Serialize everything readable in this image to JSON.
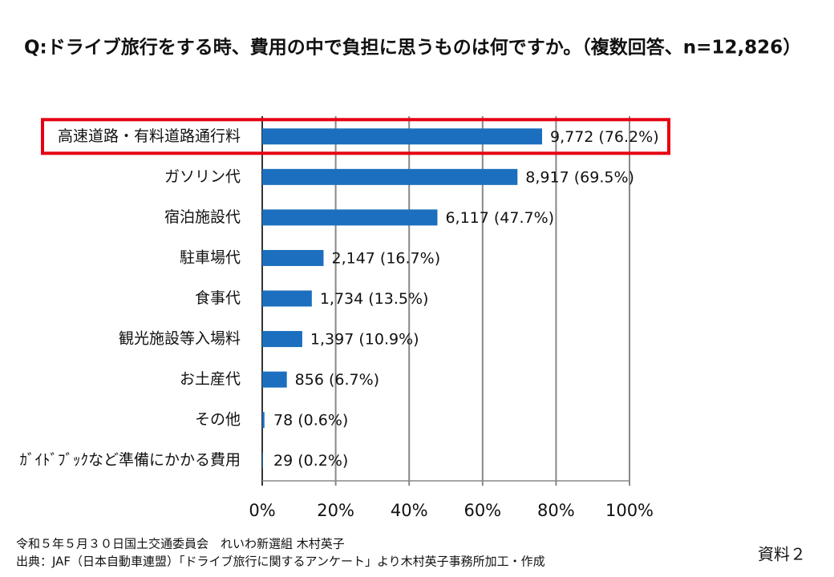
{
  "chart_data": {
    "type": "bar",
    "orientation": "horizontal",
    "title": "Q:ドライブ旅行をする時、費用の中で負担に思うものは何ですか。（複数回答、n=12,826）",
    "categories": [
      "高速道路・有料道路通行料",
      "ガソリン代",
      "宿泊施設代",
      "駐車場代",
      "食事代",
      "観光施設等入場料",
      "お土産代",
      "その他",
      "ｶﾞｲﾄﾞﾌﾞｯｸなど準備にかかる費用"
    ],
    "values": [
      76.2,
      69.5,
      47.7,
      16.7,
      13.5,
      10.9,
      6.7,
      0.6,
      0.2
    ],
    "value_labels": [
      "9,772 (76.2%)",
      "8,917 (69.5%)",
      "6,117 (47.7%)",
      "2,147 (16.7%)",
      "1,734 (13.5%)",
      "1,397 (10.9%)",
      "856 (6.7%)",
      "78 (0.6%)",
      "29 (0.2%)"
    ],
    "color": "#1b6fbe",
    "xlim": [
      0,
      100
    ],
    "xticks": [
      {
        "value": 0,
        "label": "0%"
      },
      {
        "value": 20,
        "label": "20%"
      },
      {
        "value": 40,
        "label": "40%"
      },
      {
        "value": 60,
        "label": "60%"
      },
      {
        "value": 80,
        "label": "80%"
      },
      {
        "value": 100,
        "label": "100%"
      }
    ],
    "grid": true
  },
  "footer": {
    "lines": [
      "令和５年５月３０日国土交通委員会　れいわ新選組 木村英子",
      "出典：JAF（日本自動車連盟）「ドライブ旅行に関するアンケート」より木村英子事務所加工・作成"
    ],
    "doc_label": "資料２"
  }
}
